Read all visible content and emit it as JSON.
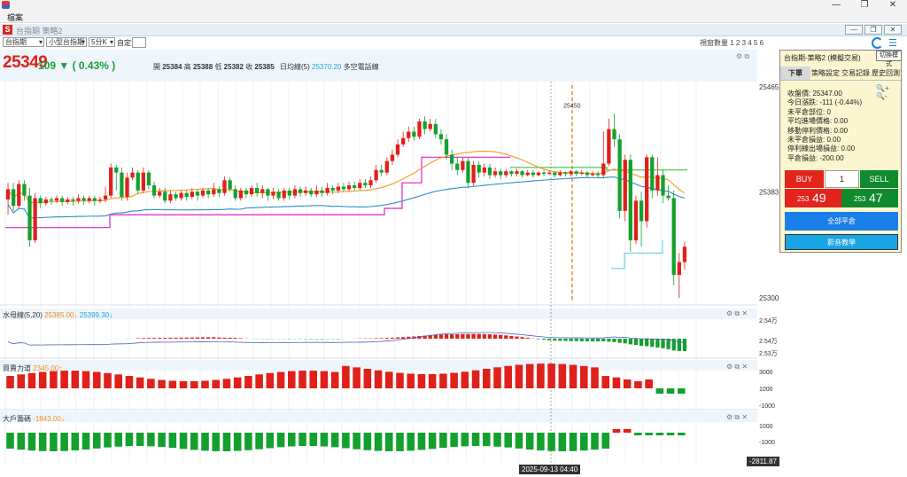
{
  "window": {
    "menu_label": "檔案",
    "inner_title": "台指期 策略2",
    "ctrl_min": "—",
    "ctrl_max": "❐",
    "ctrl_close": "✕",
    "inner_btns": [
      "—",
      "❐",
      "✕"
    ]
  },
  "toolbar": {
    "symbol": "台指期",
    "contract": "小型台指期",
    "period": "5分K",
    "custom_label": "自定:",
    "view_count": "視窗數量 1 2 3 4 5 6"
  },
  "quote": {
    "last": "25349",
    "change": "109 ▼ ( 0.43% )",
    "ohlc": [
      {
        "k": "開",
        "v": "25384"
      },
      {
        "k": "高",
        "v": "25388"
      },
      {
        "k": "低",
        "v": "25382"
      },
      {
        "k": "收",
        "v": "25385"
      }
    ],
    "ma_label": "日均線(5)",
    "ma_value": "25370.20",
    "ma_note": "多空電話線"
  },
  "price_axis": {
    "top": "25465",
    "mid": "25383",
    "bottom": "25300",
    "marker": "25450"
  },
  "panes": {
    "water": {
      "title": "水母線(5,20)",
      "v1": "25385.00↓",
      "v2": "25399.30↓",
      "ticks": [
        "2.54万",
        "2.54万",
        "2.53万"
      ]
    },
    "power": {
      "title": "買賣力道",
      "v1": "2345.00↑",
      "ticks": [
        "3000",
        "1000",
        "-1000"
      ]
    },
    "big": {
      "title": "大戶籌碼",
      "v1": "-1843.00↓",
      "ticks": [
        "1000",
        "-1000"
      ]
    }
  },
  "footer": {
    "date": "2025-09-13  04:40",
    "value": "-2811.87"
  },
  "panel": {
    "title": "台指期-策略2 (模擬交易)",
    "mode_button": "切換模式",
    "tabs": [
      "下單",
      "策略設定",
      "交易記錄",
      "歷史回測"
    ],
    "zoom": "🔍+ 🔍-",
    "info": [
      "收盤價: 25347.00",
      "今日漲跌: -111 (-0.44%)",
      "未平倉部位: 0",
      "平均進場價格: 0.00",
      "移動停利價格: 0.00",
      "未平倉損益: 0.00",
      "停利線出場損益: 0.00",
      "平倉損益: -200.00"
    ],
    "buy_label": "BUY",
    "qty": "1",
    "sell_label": "SELL",
    "buy_price_small": "253",
    "buy_price_big": "49",
    "sell_price_small": "253",
    "sell_price_big": "47",
    "close_all": "全部平倉",
    "video": "影音教學"
  },
  "chart_data": {
    "type": "candlestick",
    "ylim": [
      25300,
      25465
    ],
    "candles": [
      [
        25377,
        25385,
        25365,
        25390
      ],
      [
        25385,
        25372,
        25368,
        25390
      ],
      [
        25372,
        25389,
        25370,
        25392
      ],
      [
        25389,
        25380,
        25376,
        25392
      ],
      [
        25380,
        25345,
        25340,
        25386
      ],
      [
        25345,
        25378,
        25343,
        25382
      ],
      [
        25378,
        25374,
        25370,
        25380
      ],
      [
        25374,
        25377,
        25372,
        25379
      ],
      [
        25377,
        25376,
        25373,
        25379
      ],
      [
        25376,
        25378,
        25374,
        25380
      ],
      [
        25378,
        25375,
        25372,
        25380
      ],
      [
        25375,
        25377,
        25373,
        25379
      ],
      [
        25377,
        25376,
        25372,
        25379
      ],
      [
        25376,
        25378,
        25374,
        25381
      ],
      [
        25378,
        25376,
        25373,
        25380
      ],
      [
        25376,
        25378,
        25374,
        25380
      ],
      [
        25378,
        25376,
        25372,
        25380
      ],
      [
        25376,
        25377,
        25374,
        25379
      ],
      [
        25377,
        25380,
        25375,
        25387
      ],
      [
        25380,
        25402,
        25378,
        25405
      ],
      [
        25402,
        25398,
        25384,
        25404
      ],
      [
        25398,
        25379,
        25376,
        25402
      ],
      [
        25379,
        25394,
        25376,
        25398
      ],
      [
        25394,
        25398,
        25392,
        25402
      ],
      [
        25398,
        25384,
        25381,
        25400
      ],
      [
        25384,
        25398,
        25382,
        25402
      ],
      [
        25398,
        25388,
        25385,
        25400
      ],
      [
        25388,
        25380,
        25378,
        25391
      ],
      [
        25380,
        25383,
        25378,
        25386
      ],
      [
        25383,
        25376,
        25374,
        25386
      ],
      [
        25376,
        25381,
        25374,
        25384
      ],
      [
        25381,
        25378,
        25376,
        25383
      ],
      [
        25378,
        25382,
        25376,
        25384
      ],
      [
        25382,
        25379,
        25376,
        25384
      ],
      [
        25379,
        25383,
        25377,
        25386
      ],
      [
        25383,
        25380,
        25376,
        25385
      ],
      [
        25380,
        25384,
        25378,
        25386
      ],
      [
        25384,
        25381,
        25378,
        25386
      ],
      [
        25381,
        25385,
        25379,
        25390
      ],
      [
        25385,
        25382,
        25379,
        25387
      ],
      [
        25382,
        25392,
        25380,
        25395
      ],
      [
        25392,
        25385,
        25383,
        25394
      ],
      [
        25385,
        25378,
        25376,
        25388
      ],
      [
        25378,
        25384,
        25376,
        25386
      ],
      [
        25384,
        25381,
        25378,
        25386
      ],
      [
        25381,
        25386,
        25379,
        25388
      ],
      [
        25386,
        25382,
        25379,
        25390
      ],
      [
        25382,
        25385,
        25378,
        25388
      ],
      [
        25385,
        25380,
        25376,
        25386
      ],
      [
        25380,
        25383,
        25377,
        25386
      ],
      [
        25383,
        25378,
        25376,
        25385
      ],
      [
        25378,
        25384,
        25376,
        25386
      ],
      [
        25384,
        25380,
        25377,
        25386
      ],
      [
        25380,
        25385,
        25378,
        25388
      ],
      [
        25385,
        25382,
        25379,
        25387
      ],
      [
        25382,
        25384,
        25380,
        25387
      ],
      [
        25384,
        25381,
        25379,
        25386
      ],
      [
        25381,
        25384,
        25379,
        25388
      ],
      [
        25384,
        25382,
        25379,
        25387
      ],
      [
        25382,
        25386,
        25380,
        25390
      ],
      [
        25386,
        25384,
        25381,
        25388
      ],
      [
        25384,
        25387,
        25382,
        25390
      ],
      [
        25387,
        25385,
        25383,
        25390
      ],
      [
        25385,
        25388,
        25383,
        25391
      ],
      [
        25388,
        25386,
        25384,
        25391
      ],
      [
        25386,
        25390,
        25384,
        25393
      ],
      [
        25390,
        25388,
        25386,
        25393
      ],
      [
        25388,
        25392,
        25386,
        25395
      ],
      [
        25392,
        25400,
        25390,
        25404
      ],
      [
        25400,
        25398,
        25395,
        25404
      ],
      [
        25398,
        25407,
        25396,
        25410
      ],
      [
        25407,
        25412,
        25404,
        25416
      ],
      [
        25412,
        25420,
        25410,
        25424
      ],
      [
        25420,
        25425,
        25418,
        25430
      ],
      [
        25425,
        25430,
        25422,
        25434
      ],
      [
        25430,
        25426,
        25423,
        25434
      ],
      [
        25426,
        25438,
        25424,
        25440
      ],
      [
        25438,
        25432,
        25428,
        25442
      ],
      [
        25432,
        25436,
        25430,
        25440
      ],
      [
        25436,
        25428,
        25425,
        25440
      ],
      [
        25428,
        25424,
        25420,
        25432
      ],
      [
        25424,
        25412,
        25408,
        25428
      ],
      [
        25412,
        25405,
        25400,
        25416
      ],
      [
        25405,
        25400,
        25396,
        25410
      ],
      [
        25400,
        25407,
        25398,
        25410
      ],
      [
        25407,
        25390,
        25386,
        25410
      ],
      [
        25390,
        25404,
        25388,
        25407
      ],
      [
        25404,
        25398,
        25394,
        25407
      ],
      [
        25398,
        25402,
        25395,
        25405
      ],
      [
        25402,
        25396,
        25393,
        25405
      ],
      [
        25396,
        25399,
        25394,
        25402
      ],
      [
        25399,
        25396,
        25393,
        25401
      ],
      [
        25396,
        25399,
        25394,
        25401
      ],
      [
        25399,
        25397,
        25395,
        25400
      ],
      [
        25397,
        25399,
        25395,
        25401
      ],
      [
        25399,
        25396,
        25394,
        25400
      ],
      [
        25396,
        25398,
        25395,
        25400
      ],
      [
        25398,
        25396,
        25394,
        25400
      ],
      [
        25396,
        25398,
        25395,
        25399
      ],
      [
        25398,
        25397,
        25395,
        25400
      ],
      [
        25397,
        25398,
        25396,
        25400
      ],
      [
        25398,
        25396,
        25394,
        25399
      ],
      [
        25396,
        25398,
        25395,
        25400
      ],
      [
        25398,
        25397,
        25395,
        25399
      ],
      [
        25397,
        25399,
        25395,
        25400
      ],
      [
        25399,
        25397,
        25395,
        25400
      ],
      [
        25397,
        25398,
        25396,
        25400
      ],
      [
        25398,
        25396,
        25394,
        25399
      ],
      [
        25396,
        25397,
        25395,
        25399
      ],
      [
        25397,
        25396,
        25394,
        25399
      ],
      [
        25396,
        25405,
        25394,
        25430
      ],
      [
        25405,
        25432,
        25403,
        25440
      ],
      [
        25432,
        25424,
        25418,
        25444
      ],
      [
        25424,
        25368,
        25362,
        25428
      ],
      [
        25368,
        25408,
        25360,
        25412
      ],
      [
        25408,
        25345,
        25336,
        25412
      ],
      [
        25345,
        25376,
        25342,
        25380
      ],
      [
        25376,
        25360,
        25340,
        25383
      ],
      [
        25360,
        25410,
        25355,
        25412
      ],
      [
        25410,
        25384,
        25378,
        25412
      ],
      [
        25384,
        25396,
        25380,
        25410
      ],
      [
        25396,
        25380,
        25374,
        25400
      ],
      [
        25380,
        25378,
        25376,
        25388
      ],
      [
        25378,
        25318,
        25310,
        25384
      ],
      [
        25318,
        25328,
        25300,
        25335
      ],
      [
        25328,
        25340,
        25322,
        25344
      ]
    ],
    "lines": {
      "ma5_cyan": "25370.20",
      "ma_orange": "",
      "support_magenta": "",
      "green_line": ""
    }
  }
}
